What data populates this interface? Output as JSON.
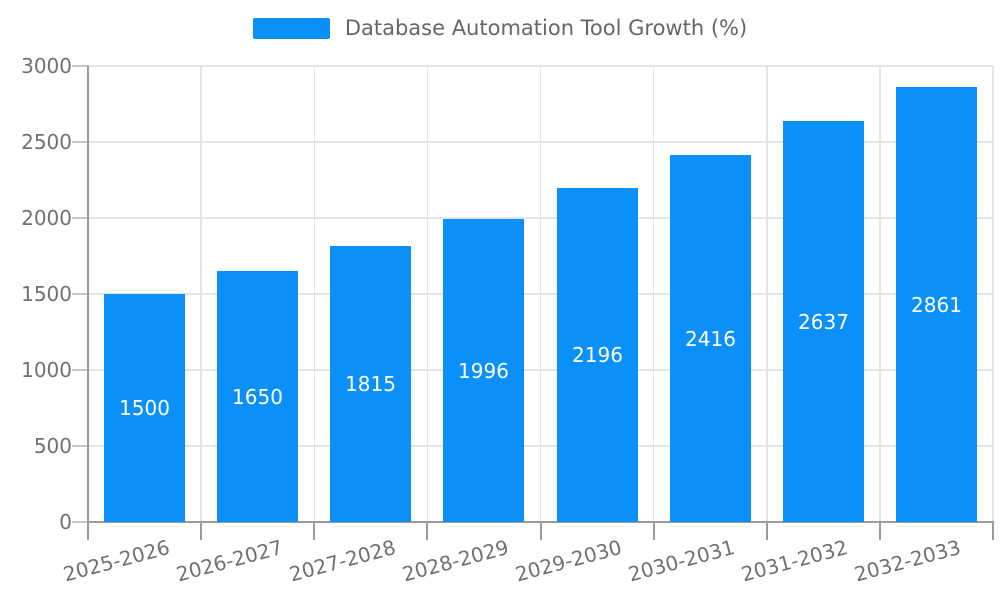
{
  "chart_data": {
    "type": "bar",
    "title": "Database Automation Tool Growth (%)",
    "legend": [
      "Database Automation Tool Growth (%)"
    ],
    "legend_position": "top-center",
    "categories": [
      "2025-2026",
      "2026-2027",
      "2027-2028",
      "2028-2029",
      "2029-2030",
      "2030-2031",
      "2031-2032",
      "2032-2033"
    ],
    "values": [
      1500,
      1650,
      1815,
      1996,
      2196,
      2416,
      2637,
      2861
    ],
    "value_labels_position": "inside-center",
    "xlabel": "",
    "ylabel": "",
    "ylim": [
      0,
      3000
    ],
    "yticks": [
      0,
      500,
      1000,
      1500,
      2000,
      2500,
      3000
    ],
    "x_label_rotation_deg": -15,
    "grid": "on",
    "colors": {
      "bar": "#0a90f8",
      "bar_value_text": "#ffffff",
      "gridline": "#e2e4e9",
      "axis_line": "#9a9a9f",
      "tick_text": "#707075",
      "legend_text": "#666666",
      "background": "#ffffff"
    }
  }
}
